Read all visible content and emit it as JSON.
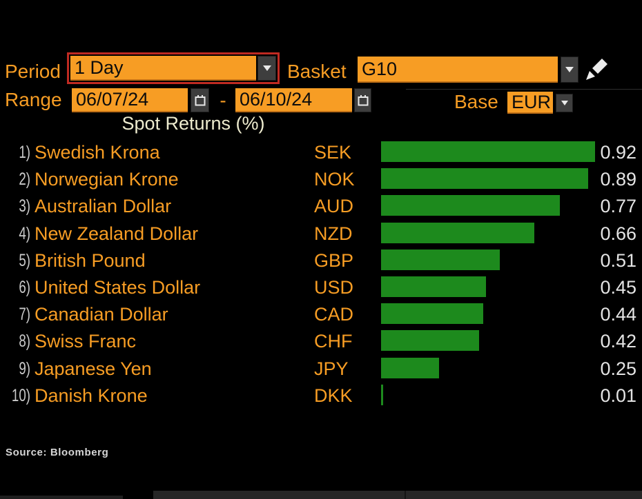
{
  "controls": {
    "period": {
      "label": "Period",
      "value": "1 Day",
      "highlighted": true
    },
    "basket": {
      "label": "Basket",
      "value": "G10"
    },
    "range": {
      "label": "Range",
      "start": "06/07/24",
      "separator": "-",
      "end": "06/10/24"
    },
    "base": {
      "label": "Base",
      "value": "EUR"
    }
  },
  "chart_data": {
    "type": "bar",
    "orientation": "horizontal",
    "title": "Spot Returns (%)",
    "row_labels": [
      "1)",
      "2)",
      "3)",
      "4)",
      "5)",
      "6)",
      "7)",
      "8)",
      "9)",
      "10)"
    ],
    "categories": [
      "Swedish Krona",
      "Norwegian Krone",
      "Australian Dollar",
      "New Zealand Dollar",
      "British Pound",
      "United States Dollar",
      "Canadian Dollar",
      "Swiss Franc",
      "Japanese Yen",
      "Danish Krone"
    ],
    "codes": [
      "SEK",
      "NOK",
      "AUD",
      "NZD",
      "GBP",
      "USD",
      "CAD",
      "CHF",
      "JPY",
      "DKK"
    ],
    "values": [
      0.92,
      0.89,
      0.77,
      0.66,
      0.51,
      0.45,
      0.44,
      0.42,
      0.25,
      0.01
    ],
    "value_labels": [
      "0.92",
      "0.89",
      "0.77",
      "0.66",
      "0.51",
      "0.45",
      "0.44",
      "0.42",
      "0.25",
      "0.01"
    ],
    "xlim": [
      0,
      0.95
    ],
    "bar_color": "#1d8a1d",
    "legend": "none",
    "grid": "off"
  },
  "footer": {
    "source": "Source: Bloomberg"
  },
  "colors": {
    "amber": "#f79d24",
    "bar_green": "#1d8a1d",
    "highlight_red": "#bf2a22",
    "title_cream": "#eeeccf",
    "background": "#000000"
  }
}
